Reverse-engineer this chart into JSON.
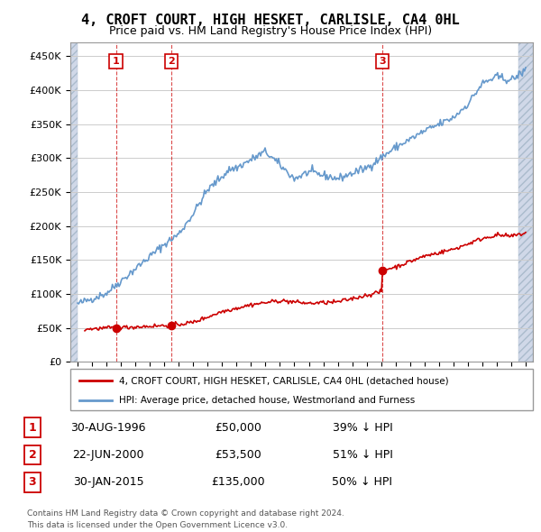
{
  "title": "4, CROFT COURT, HIGH HESKET, CARLISLE, CA4 0HL",
  "subtitle": "Price paid vs. HM Land Registry's House Price Index (HPI)",
  "red_line_label": "4, CROFT COURT, HIGH HESKET, CARLISLE, CA4 0HL (detached house)",
  "blue_line_label": "HPI: Average price, detached house, Westmorland and Furness",
  "footer1": "Contains HM Land Registry data © Crown copyright and database right 2024.",
  "footer2": "This data is licensed under the Open Government Licence v3.0.",
  "sale_points": [
    {
      "num": 1,
      "date_x": 1996.66,
      "price": 50000,
      "label": "30-AUG-1996",
      "pct": "39% ↓ HPI"
    },
    {
      "num": 2,
      "date_x": 2000.47,
      "price": 53500,
      "label": "22-JUN-2000",
      "pct": "51% ↓ HPI"
    },
    {
      "num": 3,
      "date_x": 2015.08,
      "price": 135000,
      "label": "30-JAN-2015",
      "pct": "50% ↓ HPI"
    }
  ],
  "ylim": [
    0,
    470000
  ],
  "xlim": [
    1993.5,
    2025.5
  ],
  "background_hatch_color": "#d0d8e8",
  "background_plot_color": "#ffffff",
  "grid_color": "#cccccc",
  "red_color": "#cc0000",
  "blue_color": "#6699cc"
}
